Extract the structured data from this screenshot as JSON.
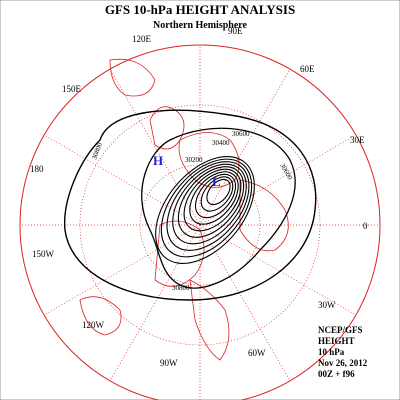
{
  "header": {
    "title": "GFS 10-hPa HEIGHT ANALYSIS",
    "subtitle": "Northern Hemisphere"
  },
  "longitude_labels": [
    "90E",
    "120E",
    "60E",
    "150E",
    "30E",
    "180",
    "0",
    "150W",
    "30W",
    "120W",
    "60W",
    "90W"
  ],
  "contour_labels": [
    "30600",
    "30400",
    "30200",
    "30800",
    "30800",
    "30600"
  ],
  "pressure_centers": [
    "H",
    "L"
  ],
  "footer": [
    "NCEP/GFS",
    "HEIGHT",
    "10 hPa",
    "Nov 26, 2012",
    "00Z + f96"
  ]
}
